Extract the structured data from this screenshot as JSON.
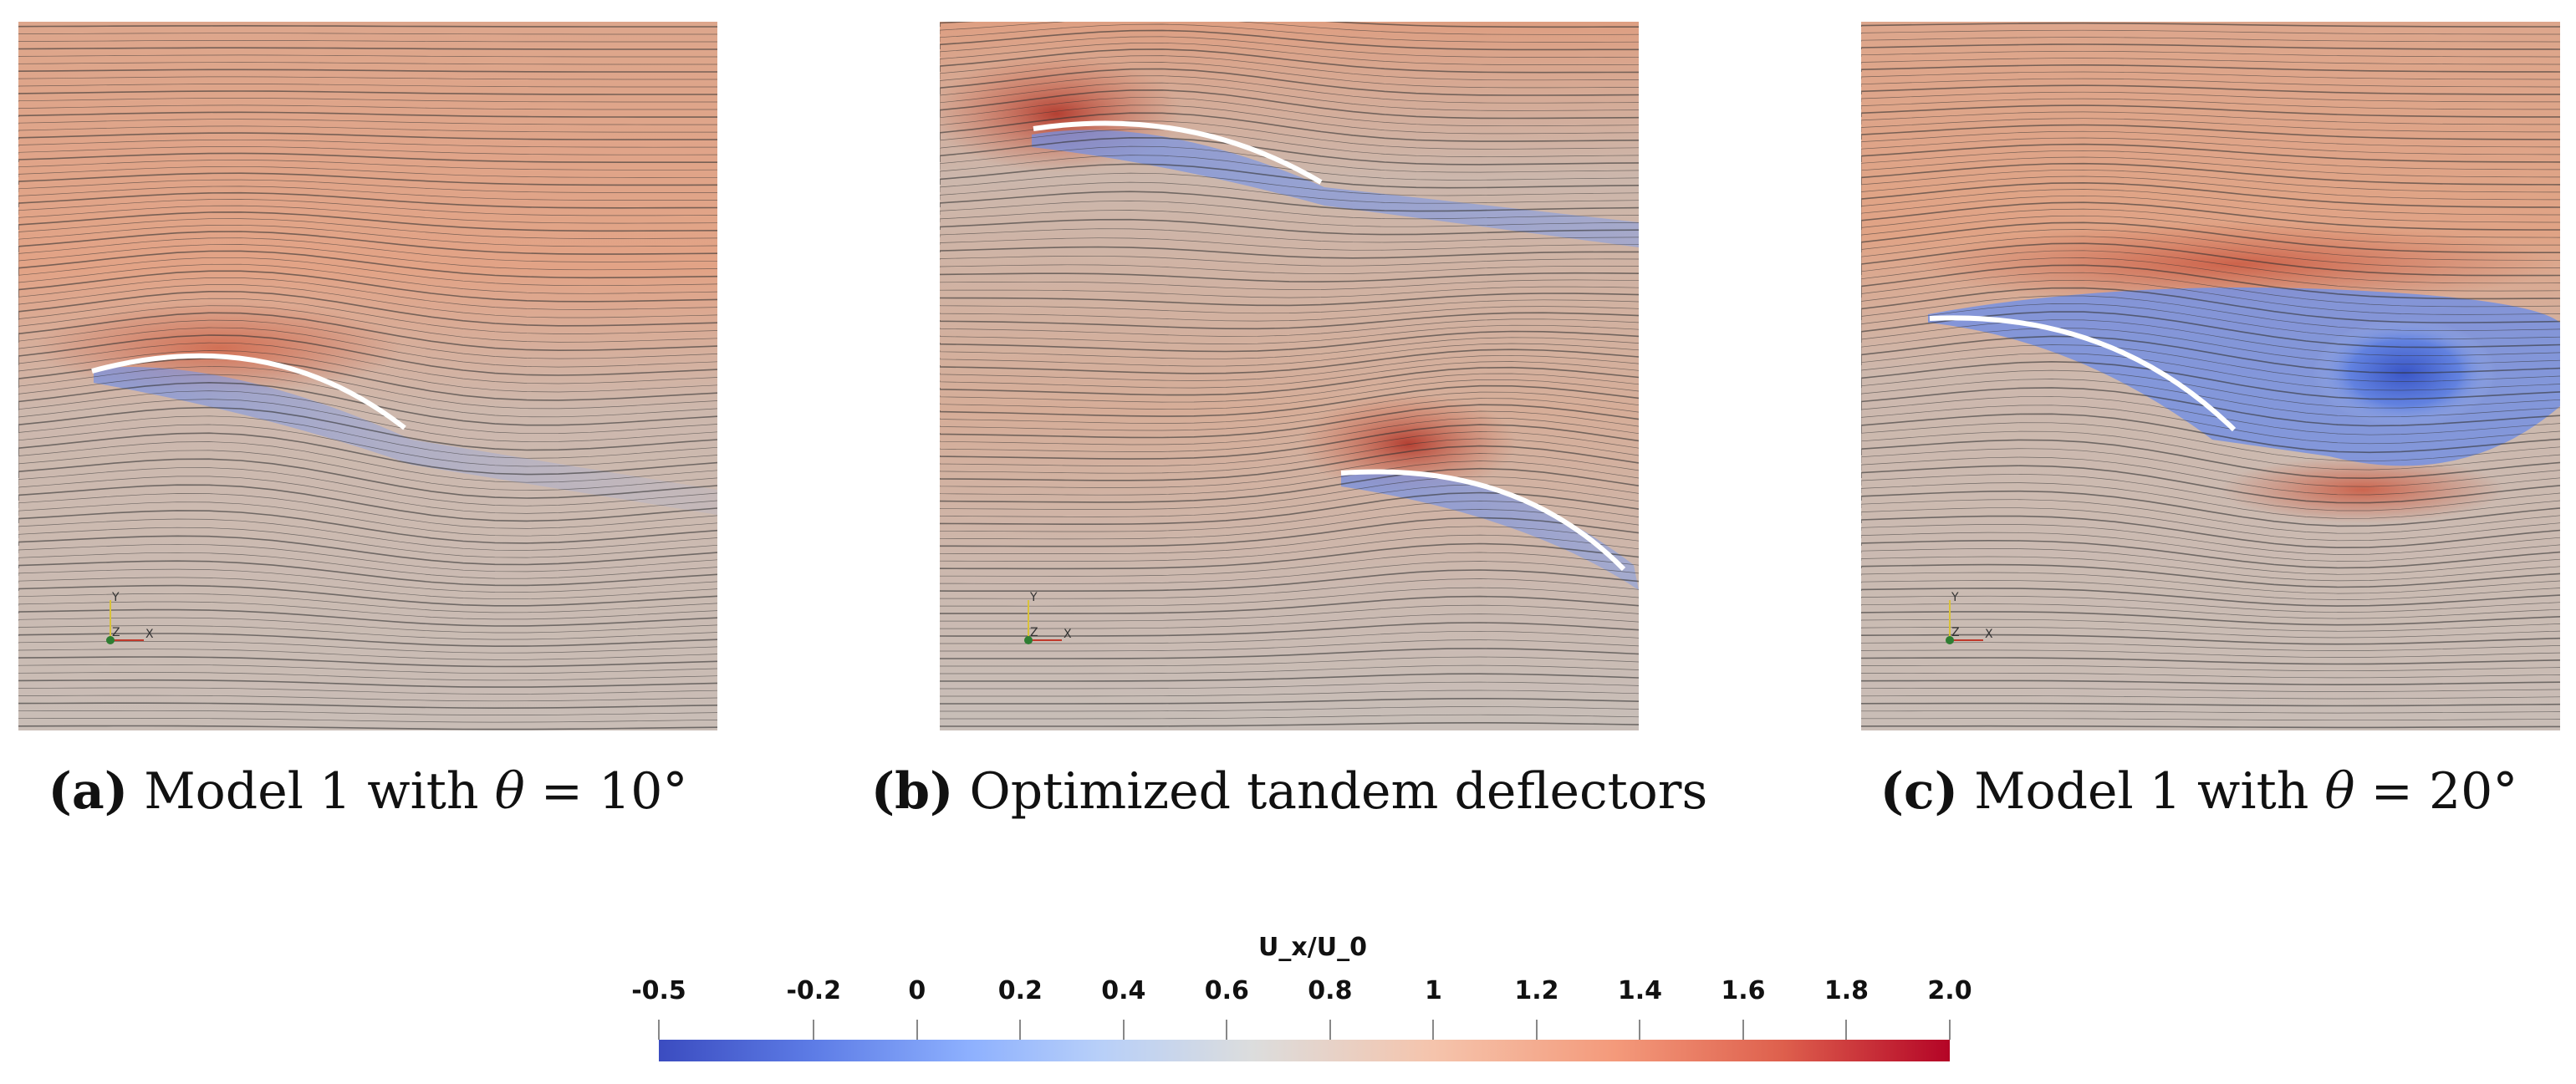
{
  "panels": [
    {
      "id": "a",
      "caption": {
        "label": "(a)",
        "text": "Model 1 with ",
        "symbol": "θ",
        "rest": " = 10°"
      },
      "axes": {
        "y": "Y",
        "z": "Z",
        "x": "X"
      }
    },
    {
      "id": "b",
      "caption": {
        "label": "(b)",
        "text": "Optimized tandem deflectors",
        "symbol": "",
        "rest": ""
      },
      "axes": {
        "y": "Y",
        "z": "Z",
        "x": "X"
      }
    },
    {
      "id": "c",
      "caption": {
        "label": "(c)",
        "text": "Model 1 with ",
        "symbol": "θ",
        "rest": " = 20°"
      },
      "axes": {
        "y": "Y",
        "z": "Z",
        "x": "X"
      }
    }
  ],
  "colorbar": {
    "title": "U_x/U_0",
    "min": -0.5,
    "max": 2.0,
    "ticks": [
      "-0.5",
      "-0.2",
      "0",
      "0.2",
      "0.4",
      "0.6",
      "0.8",
      "1",
      "1.2",
      "1.4",
      "1.6",
      "1.8",
      "2.0"
    ],
    "colormap": "cool-warm",
    "colors": {
      "low": "#3b4cc0",
      "mid": "#dcdddd",
      "high": "#b40426"
    }
  }
}
